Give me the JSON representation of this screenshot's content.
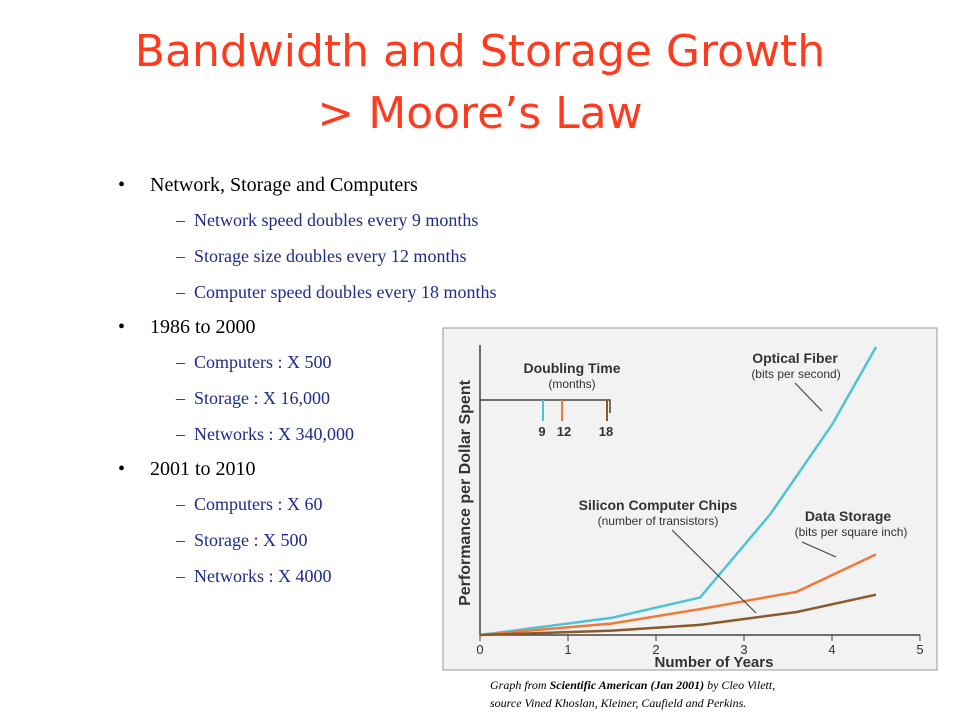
{
  "title": {
    "line1": "Bandwidth and Storage Growth",
    "line2": "> Moore’s Law"
  },
  "bullets": [
    {
      "text": "Network, Storage and Computers",
      "sub": [
        "Network speed doubles every 9 months",
        "Storage size doubles every 12 months",
        "Computer speed doubles every 18 months"
      ]
    },
    {
      "text": "1986 to 2000",
      "sub": [
        "Computers : X 500",
        "Storage : X 16,000",
        "Networks : X 340,000"
      ]
    },
    {
      "text": "2001 to 2010",
      "sub": [
        "Computers : X 60",
        "Storage : X 500",
        "Networks : X 4000"
      ]
    }
  ],
  "caption": {
    "prefix": "Graph from ",
    "bold": "Scientific American (Jan 2001)",
    "suffix": " by Cleo Vilett,",
    "line2": "source Vined Khoslan, Kleiner, Caufield and Perkins."
  },
  "chart_data": {
    "type": "line",
    "xlabel": "Number of Years",
    "ylabel": "Performance per Dollar Spent",
    "xlim": [
      0,
      5
    ],
    "x_ticks": [
      "0",
      "1",
      "2",
      "3",
      "4",
      "5"
    ],
    "grid": false,
    "doubling_box": {
      "title": "Doubling Time",
      "subtitle": "(months)",
      "values": [
        "9",
        "12",
        "18"
      ],
      "colors": [
        "#4fc3d6",
        "#f07a3a",
        "#8a5a2b"
      ]
    },
    "series": [
      {
        "name": "Optical Fiber",
        "sublabel": "(bits per second)",
        "color": "#4fc3d6",
        "x": [
          0,
          1.5,
          2.5,
          3.3,
          4.0,
          4.5
        ],
        "y": [
          0.0,
          0.06,
          0.13,
          0.42,
          0.73,
          1.0
        ]
      },
      {
        "name": "Data Storage",
        "sublabel": "(bits per square inch)",
        "color": "#f07a3a",
        "x": [
          0,
          1.5,
          2.5,
          3.6,
          4.5
        ],
        "y": [
          0.0,
          0.04,
          0.09,
          0.15,
          0.28
        ]
      },
      {
        "name": "Silicon Computer Chips",
        "sublabel": "(number of transistors)",
        "color": "#8a5a2b",
        "x": [
          0,
          1.5,
          2.5,
          3.6,
          4.5
        ],
        "y": [
          0.0,
          0.015,
          0.035,
          0.08,
          0.14
        ]
      }
    ]
  }
}
